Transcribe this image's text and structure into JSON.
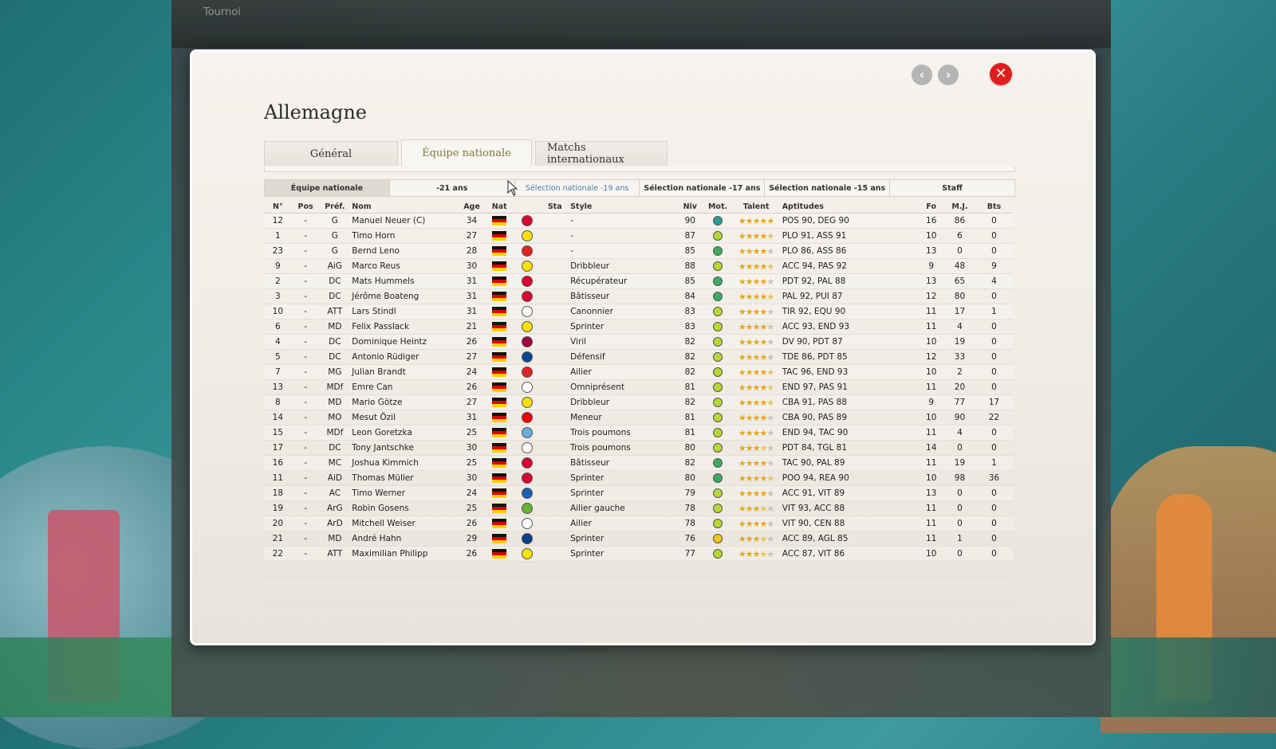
{
  "background_window": {
    "title": "Tournoi"
  },
  "dialog": {
    "title": "Allemagne",
    "nav": {
      "prev": "‹",
      "next": "›",
      "close": "✕"
    }
  },
  "tabs": [
    {
      "label": "Général",
      "active": false
    },
    {
      "label": "Équipe nationale",
      "active": true
    },
    {
      "label": "Matchs internationaux",
      "active": false
    }
  ],
  "subtabs": [
    {
      "label": "Équipe nationale",
      "active": true
    },
    {
      "label": "-21 ans",
      "active": false
    },
    {
      "label": "Sélection nationale -19 ans",
      "active": false,
      "hover": true
    },
    {
      "label": "Sélection nationale -17 ans",
      "active": false
    },
    {
      "label": "Sélection nationale -15 ans",
      "active": false
    },
    {
      "label": "Staff",
      "active": false
    }
  ],
  "columns": [
    "N°",
    "Pos",
    "Préf.",
    "Nom",
    "Age",
    "Nat",
    "",
    "Sta",
    "Style",
    "Niv",
    "Mot.",
    "Talent",
    "Aptitudes",
    "Fo",
    "M.J.",
    "Bts"
  ],
  "club_colors": {
    "bayern": "#dc052d",
    "bvb": "#fde100",
    "leverkusen": "#e32221",
    "gladbach": "#ffffff",
    "barca": "#a50044",
    "chelsea": "#034694",
    "arsenal": "#ef0107",
    "mancity": "#6cabdd",
    "hoffenheim": "#1961b5",
    "wolfsburg": "#65b32e",
    "koln": "#ffffff",
    "hamburg": "#0a3e8a"
  },
  "motivation_colors": {
    "high": "#3aae5f",
    "good": "#b6d931",
    "mid": "#f2c618"
  },
  "players": [
    {
      "no": "12",
      "pos": "-",
      "pref": "G",
      "name": "Manuel Neuer (C)",
      "age": "34",
      "club": "bayern",
      "sta": "",
      "style": "-",
      "niv": "90",
      "mot": "teal",
      "talent": 5,
      "apt": "POS 90, DEG 90",
      "fo": "16",
      "mj": "86",
      "bts": "0"
    },
    {
      "no": "1",
      "pos": "-",
      "pref": "G",
      "name": "Timo Horn",
      "age": "27",
      "club": "bvb",
      "sta": "",
      "style": "-",
      "niv": "87",
      "mot": "good",
      "talent": 4.5,
      "apt": "PLO 91, ASS 91",
      "fo": "10",
      "mj": "6",
      "bts": "0"
    },
    {
      "no": "23",
      "pos": "-",
      "pref": "G",
      "name": "Bernd Leno",
      "age": "28",
      "club": "leverkusen",
      "sta": "",
      "style": "-",
      "niv": "85",
      "mot": "high",
      "talent": 4,
      "apt": "PLO 86, ASS 86",
      "fo": "13",
      "mj": "0",
      "bts": "0"
    },
    {
      "no": "9",
      "pos": "-",
      "pref": "AiG",
      "name": "Marco Reus",
      "age": "30",
      "club": "bvb",
      "sta": "",
      "style": "Dribbleur",
      "niv": "88",
      "mot": "good",
      "talent": 4.5,
      "apt": "ACC 94, PAS 92",
      "fo": "9",
      "mj": "48",
      "bts": "9"
    },
    {
      "no": "2",
      "pos": "-",
      "pref": "DC",
      "name": "Mats Hummels",
      "age": "31",
      "club": "bayern",
      "sta": "",
      "style": "Récupérateur",
      "niv": "85",
      "mot": "high",
      "talent": 4,
      "apt": "PDT 92, PAL 88",
      "fo": "13",
      "mj": "65",
      "bts": "4"
    },
    {
      "no": "3",
      "pos": "-",
      "pref": "DC",
      "name": "Jérôme Boateng",
      "age": "31",
      "club": "bayern",
      "sta": "",
      "style": "Bâtisseur",
      "niv": "84",
      "mot": "high",
      "talent": 4.5,
      "apt": "PAL 92, PUI 87",
      "fo": "12",
      "mj": "80",
      "bts": "0"
    },
    {
      "no": "10",
      "pos": "-",
      "pref": "ATT",
      "name": "Lars Stindl",
      "age": "31",
      "club": "gladbach",
      "sta": "",
      "style": "Canonnier",
      "niv": "83",
      "mot": "good",
      "talent": 4,
      "apt": "TIR 92, EQU 90",
      "fo": "11",
      "mj": "17",
      "bts": "1"
    },
    {
      "no": "6",
      "pos": "-",
      "pref": "MD",
      "name": "Felix Passlack",
      "age": "21",
      "club": "bvb",
      "sta": "",
      "style": "Sprinter",
      "niv": "83",
      "mot": "good",
      "talent": 4,
      "apt": "ACC 93, END 93",
      "fo": "11",
      "mj": "4",
      "bts": "0"
    },
    {
      "no": "4",
      "pos": "-",
      "pref": "DC",
      "name": "Dominique Heintz",
      "age": "26",
      "club": "barca",
      "sta": "",
      "style": "Viril",
      "niv": "82",
      "mot": "good",
      "talent": 4,
      "apt": "DV 90, PDT 87",
      "fo": "10",
      "mj": "19",
      "bts": "0"
    },
    {
      "no": "5",
      "pos": "-",
      "pref": "DC",
      "name": "Antonio Rüdiger",
      "age": "27",
      "club": "chelsea",
      "sta": "",
      "style": "Défensif",
      "niv": "82",
      "mot": "good",
      "talent": 4,
      "apt": "TDE 86, PDT 85",
      "fo": "12",
      "mj": "33",
      "bts": "0"
    },
    {
      "no": "7",
      "pos": "-",
      "pref": "MG",
      "name": "Julian Brandt",
      "age": "24",
      "club": "leverkusen",
      "sta": "",
      "style": "Ailier",
      "niv": "82",
      "mot": "good",
      "talent": 4.5,
      "apt": "TAC 96, END 93",
      "fo": "10",
      "mj": "2",
      "bts": "0"
    },
    {
      "no": "13",
      "pos": "-",
      "pref": "MDf",
      "name": "Emre Can",
      "age": "26",
      "club": "gladbach",
      "sta": "",
      "style": "Omniprésent",
      "niv": "81",
      "mot": "good",
      "talent": 4.5,
      "apt": "END 97, PAS 91",
      "fo": "11",
      "mj": "20",
      "bts": "0"
    },
    {
      "no": "8",
      "pos": "-",
      "pref": "MD",
      "name": "Mario Götze",
      "age": "27",
      "club": "bvb",
      "sta": "",
      "style": "Dribbleur",
      "niv": "82",
      "mot": "good",
      "talent": 4.5,
      "apt": "CBA 91, PAS 88",
      "fo": "9",
      "mj": "77",
      "bts": "17"
    },
    {
      "no": "14",
      "pos": "-",
      "pref": "MO",
      "name": "Mesut Özil",
      "age": "31",
      "club": "arsenal",
      "sta": "",
      "style": "Meneur",
      "niv": "81",
      "mot": "good",
      "talent": 4,
      "apt": "CBA 90, PAS 89",
      "fo": "10",
      "mj": "90",
      "bts": "22"
    },
    {
      "no": "15",
      "pos": "-",
      "pref": "MDf",
      "name": "Leon Goretzka",
      "age": "25",
      "club": "mancity",
      "sta": "",
      "style": "Trois poumons",
      "niv": "81",
      "mot": "good",
      "talent": 4,
      "apt": "END 94, TAC 90",
      "fo": "11",
      "mj": "4",
      "bts": "0"
    },
    {
      "no": "17",
      "pos": "-",
      "pref": "DC",
      "name": "Tony Jantschke",
      "age": "30",
      "club": "gladbach",
      "sta": "",
      "style": "Trois poumons",
      "niv": "80",
      "mot": "good",
      "talent": 3.5,
      "apt": "PDT 84, TGL 81",
      "fo": "14",
      "mj": "0",
      "bts": "0"
    },
    {
      "no": "16",
      "pos": "-",
      "pref": "MC",
      "name": "Joshua Kimmich",
      "age": "25",
      "club": "bayern",
      "sta": "",
      "style": "Bâtisseur",
      "niv": "82",
      "mot": "high",
      "talent": 4,
      "apt": "TAC 90, PAL 89",
      "fo": "11",
      "mj": "19",
      "bts": "1"
    },
    {
      "no": "11",
      "pos": "-",
      "pref": "AiD",
      "name": "Thomas Müller",
      "age": "30",
      "club": "bayern",
      "sta": "",
      "style": "Sprinter",
      "niv": "80",
      "mot": "high",
      "talent": 4.5,
      "apt": "POO 94, REA 90",
      "fo": "10",
      "mj": "98",
      "bts": "36"
    },
    {
      "no": "18",
      "pos": "-",
      "pref": "AC",
      "name": "Timo Werner",
      "age": "24",
      "club": "hoffenheim",
      "sta": "",
      "style": "Sprinter",
      "niv": "79",
      "mot": "good",
      "talent": 4,
      "apt": "ACC 91, VIT 89",
      "fo": "13",
      "mj": "0",
      "bts": "0"
    },
    {
      "no": "19",
      "pos": "-",
      "pref": "ArG",
      "name": "Robin Gosens",
      "age": "25",
      "club": "wolfsburg",
      "sta": "",
      "style": "Ailier gauche",
      "niv": "78",
      "mot": "good",
      "talent": 3.5,
      "apt": "VIT 93, ACC 88",
      "fo": "11",
      "mj": "0",
      "bts": "0"
    },
    {
      "no": "20",
      "pos": "-",
      "pref": "ArD",
      "name": "Mitchell Weiser",
      "age": "26",
      "club": "koln",
      "sta": "",
      "style": "Ailier",
      "niv": "78",
      "mot": "good",
      "talent": 4,
      "apt": "VIT 90, CEN 88",
      "fo": "11",
      "mj": "0",
      "bts": "0"
    },
    {
      "no": "21",
      "pos": "-",
      "pref": "MD",
      "name": "André Hahn",
      "age": "29",
      "club": "hamburg",
      "sta": "",
      "style": "Sprinter",
      "niv": "76",
      "mot": "mid",
      "talent": 3.5,
      "apt": "ACC 89, AGL 85",
      "fo": "11",
      "mj": "1",
      "bts": "0"
    },
    {
      "no": "22",
      "pos": "-",
      "pref": "ATT",
      "name": "Maximilian Philipp",
      "age": "26",
      "club": "bvb",
      "sta": "",
      "style": "Sprinter",
      "niv": "77",
      "mot": "good",
      "talent": 3.5,
      "apt": "ACC 87, VIT 86",
      "fo": "10",
      "mj": "0",
      "bts": "0"
    }
  ]
}
